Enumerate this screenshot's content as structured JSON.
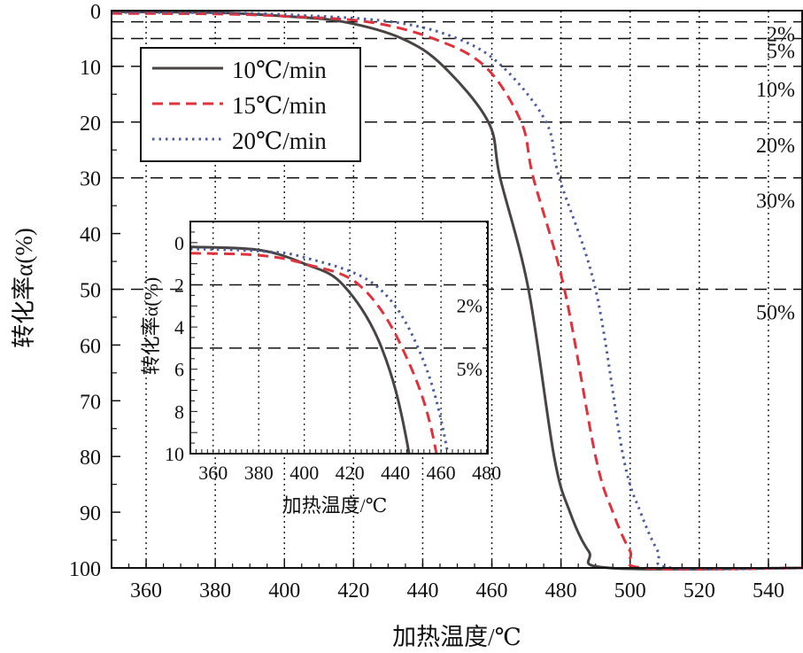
{
  "chart_data": {
    "type": "line",
    "xlabel": "加热温度/℃",
    "ylabel": "转化率α(%)",
    "xlim": [
      350,
      550
    ],
    "ylim": [
      0,
      100
    ],
    "y_inverted": true,
    "xticks": [
      360,
      380,
      400,
      420,
      440,
      460,
      480,
      500,
      520,
      540
    ],
    "yticks": [
      0,
      10,
      20,
      30,
      40,
      50,
      60,
      70,
      80,
      90,
      100
    ],
    "grid": "vertical dotted",
    "legend_placement": "top-left",
    "reference_lines": [
      {
        "y": 2,
        "label": "2%"
      },
      {
        "y": 5,
        "label": "5%"
      },
      {
        "y": 10,
        "label": "10%"
      },
      {
        "y": 20,
        "label": "20%"
      },
      {
        "y": 30,
        "label": "30%"
      },
      {
        "y": 50,
        "label": "50%"
      }
    ],
    "series": [
      {
        "name": "10℃/min",
        "color": "#4a4343",
        "style": "solid",
        "x": [
          350,
          380,
          400,
          417,
          434,
          446,
          459,
          462.4,
          470.6,
          478,
          482.6,
          488,
          494,
          550
        ],
        "y": [
          0.2,
          0.35,
          1,
          2,
          5,
          10,
          20,
          30,
          50,
          80,
          90,
          97,
          100,
          100
        ]
      },
      {
        "name": "15℃/min",
        "color": "#e0323c",
        "style": "dashed",
        "x": [
          350,
          380,
          400,
          424,
          443,
          458,
          468.5,
          472,
          481,
          490,
          495,
          500,
          504,
          550
        ],
        "y": [
          0.5,
          0.6,
          1,
          2,
          5,
          10,
          20,
          30,
          50,
          80,
          90,
          97,
          100,
          100
        ]
      },
      {
        "name": "20℃/min",
        "color": "#4a5a9a",
        "style": "dotted",
        "x": [
          350,
          380,
          400,
          431,
          450,
          463,
          475.7,
          479.5,
          490,
          498,
          503,
          508,
          512,
          550
        ],
        "y": [
          0.3,
          0.4,
          0.7,
          2,
          5,
          10,
          20,
          30,
          50,
          80,
          90,
          97,
          100,
          100
        ]
      }
    ],
    "inset": {
      "xlabel": "加热温度/℃",
      "ylabel": "转化率α(%)",
      "xlim": [
        350,
        480
      ],
      "ylim": [
        -1,
        10
      ],
      "xticks": [
        360,
        380,
        400,
        420,
        440,
        460,
        480
      ],
      "yticks": [
        0,
        2,
        4,
        6,
        8,
        10
      ],
      "reference_lines": [
        {
          "y": 2,
          "label": "2%"
        },
        {
          "y": 5,
          "label": "5%"
        }
      ]
    }
  }
}
